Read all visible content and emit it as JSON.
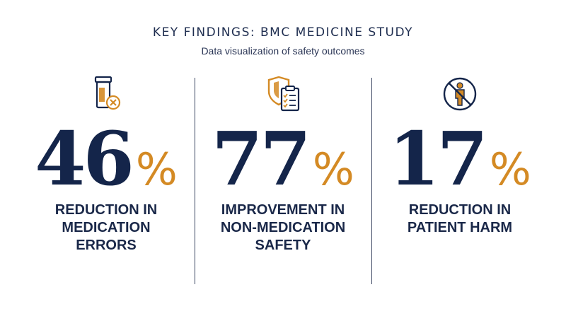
{
  "header": {
    "title": "KEY FINDINGS: BMC MEDICINE STUDY",
    "subtitle": "Data visualization of safety outcomes"
  },
  "colors": {
    "navy": "#14254a",
    "accent_orange": "#d48a24"
  },
  "chart_data": {
    "type": "table",
    "unit": "%",
    "stats": [
      {
        "value": 46,
        "value_text": "46",
        "unit": "%",
        "label_lines": [
          "REDUCTION IN",
          "MEDICATION",
          "ERRORS"
        ],
        "icon": "pill-bottle-x-icon"
      },
      {
        "value": 77,
        "value_text": "77",
        "unit": "%",
        "label_lines": [
          "IMPROVEMENT IN",
          "NON-MEDICATION",
          "SAFETY"
        ],
        "icon": "shield-clipboard-icon"
      },
      {
        "value": 17,
        "value_text": "17",
        "unit": "%",
        "label_lines": [
          "REDUCTION IN",
          "PATIENT HARM"
        ],
        "icon": "person-no-harm-icon"
      }
    ]
  }
}
